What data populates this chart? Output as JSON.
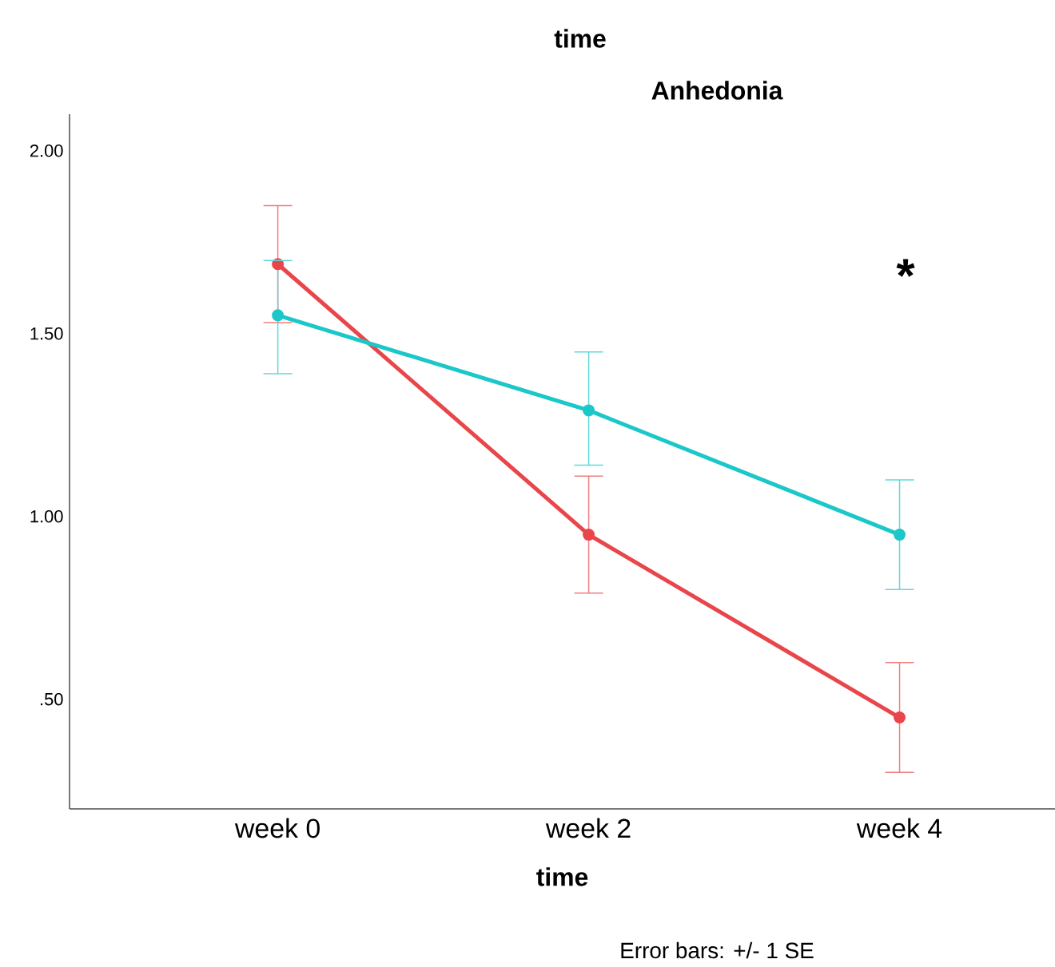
{
  "chart_data": {
    "type": "line",
    "title": "time",
    "subtitle": "Anhedonia",
    "xlabel": "time",
    "categories": [
      "week 0",
      "week 2",
      "week 4"
    ],
    "series": [
      {
        "color": "#e8464a",
        "values": [
          1.69,
          0.95,
          0.45
        ],
        "errors": [
          [
            1.53,
            1.85
          ],
          [
            0.79,
            1.11
          ],
          [
            0.3,
            0.6
          ]
        ]
      },
      {
        "color": "#1cc7c9",
        "values": [
          1.55,
          1.29,
          0.95
        ],
        "errors": [
          [
            1.39,
            1.7
          ],
          [
            1.14,
            1.45
          ],
          [
            0.8,
            1.1
          ]
        ]
      }
    ],
    "ylim": [
      0.2,
      2.1
    ],
    "yticks": [
      {
        "value": 0.5,
        "label": ".50"
      },
      {
        "value": 1.0,
        "label": "1.00"
      },
      {
        "value": 1.5,
        "label": "1.50"
      },
      {
        "value": 2.0,
        "label": "2.00"
      }
    ],
    "grid": false,
    "marker": "circle",
    "line_style": "solid",
    "annotations": [
      "*",
      "Error bars: +/- 1 SE"
    ]
  }
}
